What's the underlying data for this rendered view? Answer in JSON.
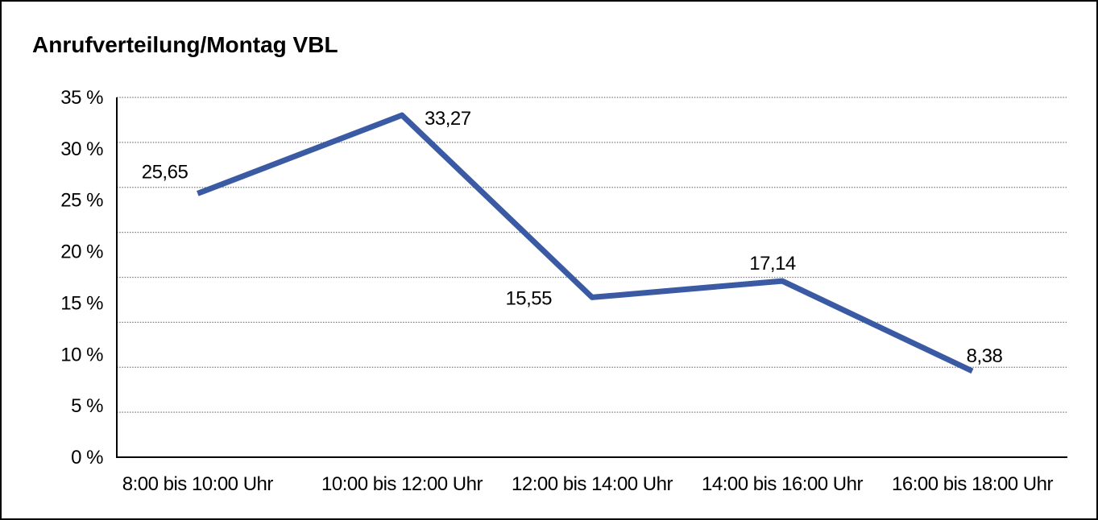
{
  "title": "Anrufverteilung/Montag VBL",
  "colors": {
    "line": "#3A5BA4",
    "grid": "#7A7A7A",
    "axis": "#000000",
    "text": "#000000",
    "background": "#FFFFFF",
    "border": "#000000"
  },
  "chart_data": {
    "type": "line",
    "title": "Anrufverteilung/Montag VBL",
    "categories": [
      "8:00 bis 10:00 Uhr",
      "10:00 bis 12:00 Uhr",
      "12:00 bis 14:00 Uhr",
      "14:00 bis 16:00 Uhr",
      "16:00 bis 18:00 Uhr"
    ],
    "values": [
      25.65,
      33.27,
      15.55,
      17.14,
      8.38
    ],
    "value_labels": [
      "25,65",
      "33,27",
      "15,55",
      "17,14",
      "8,38"
    ],
    "y_ticks": [
      "35 %",
      "30 %",
      "25 %",
      "20 %",
      "15 %",
      "10 %",
      "5 %",
      "0 %"
    ],
    "y_tick_values": [
      35,
      30,
      25,
      20,
      15,
      10,
      5,
      0
    ],
    "ylim": [
      0,
      35
    ],
    "xlabel": "",
    "ylabel": "",
    "grid": "horizontal-dotted",
    "grid_divisions": 8,
    "legend": "none"
  }
}
